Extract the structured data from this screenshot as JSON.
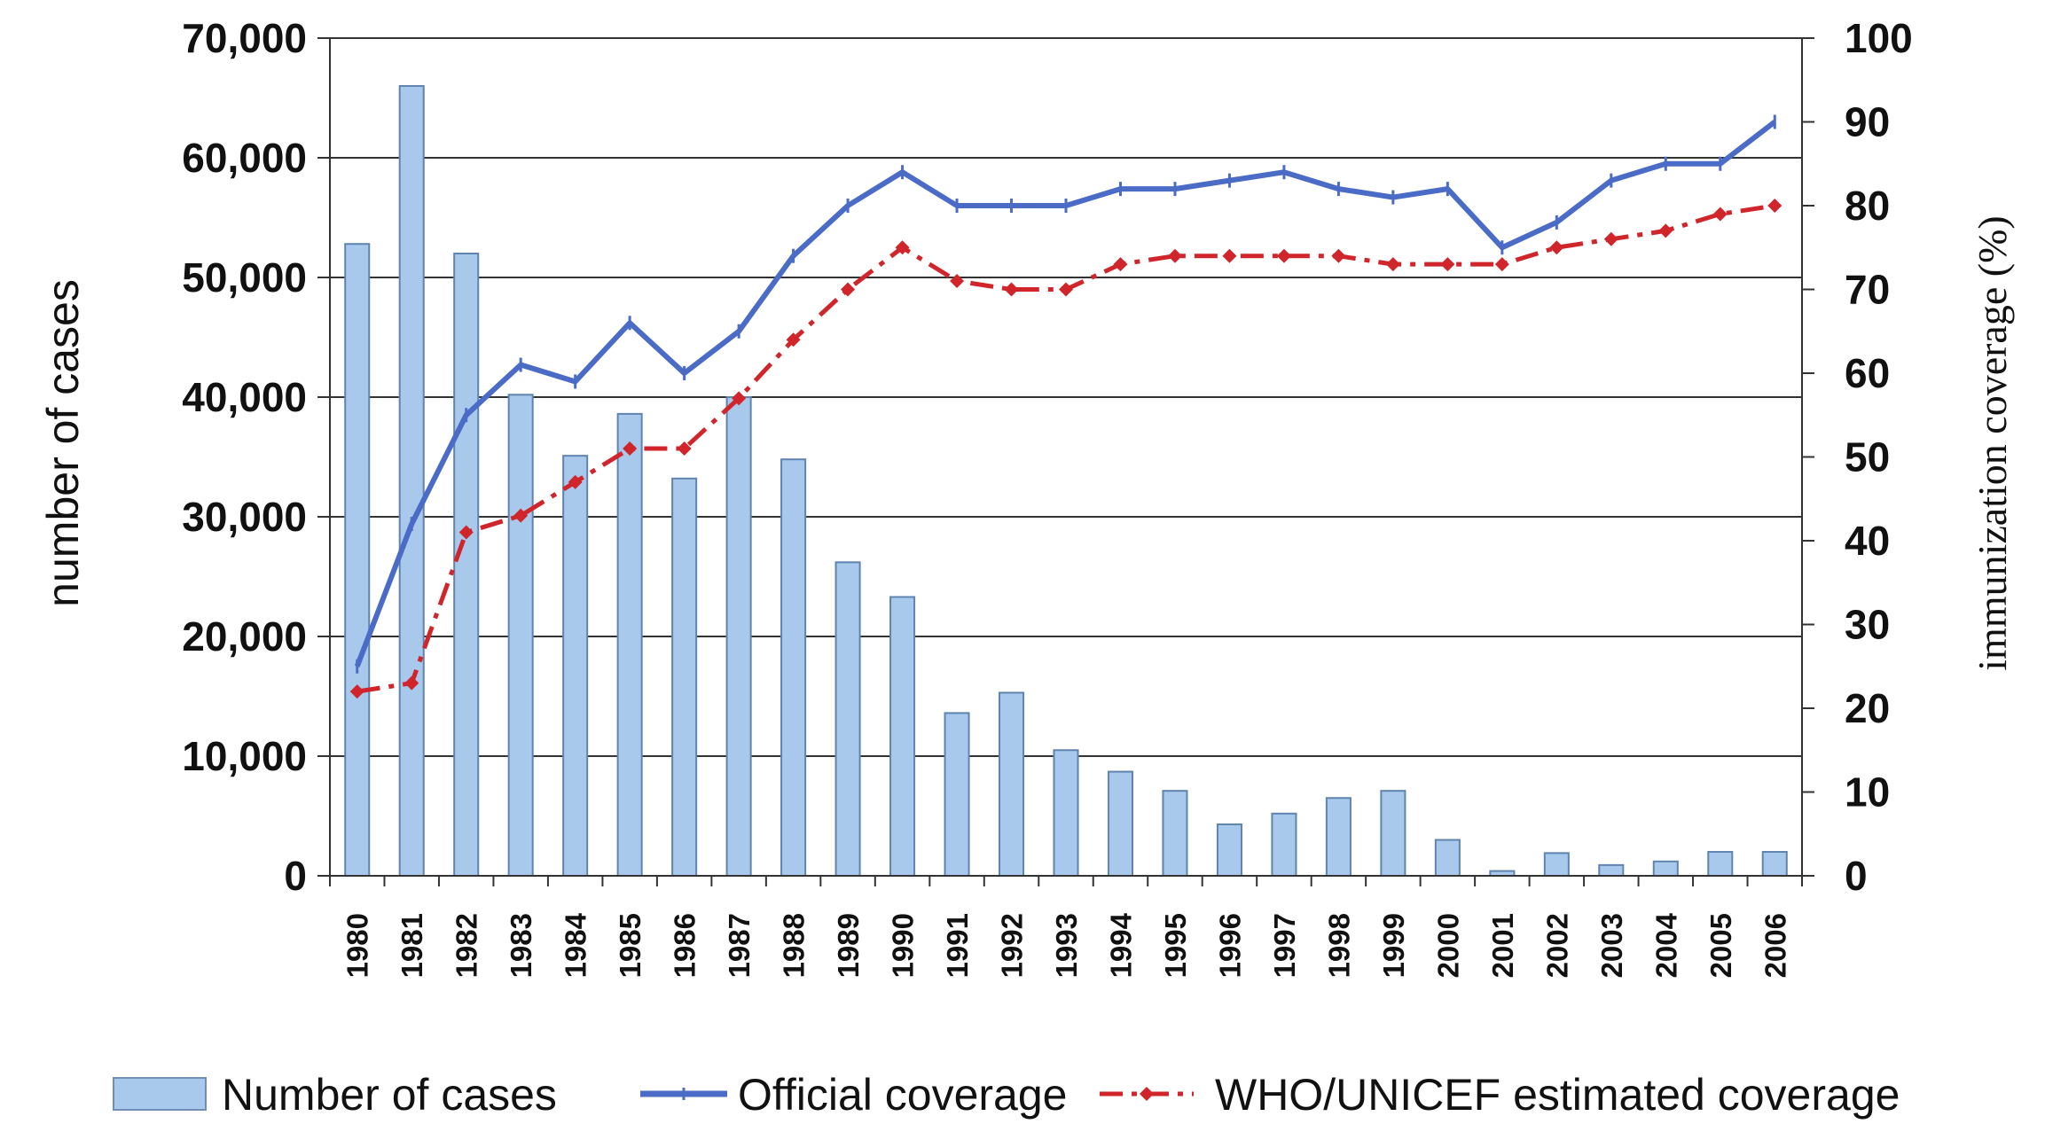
{
  "chart_data": {
    "type": "bar-line-combo",
    "years": [
      "1980",
      "1981",
      "1982",
      "1983",
      "1984",
      "1985",
      "1986",
      "1987",
      "1988",
      "1989",
      "1990",
      "1991",
      "1992",
      "1993",
      "1994",
      "1995",
      "1996",
      "1997",
      "1998",
      "1999",
      "2000",
      "2001",
      "2002",
      "2003",
      "2004",
      "2005",
      "2006"
    ],
    "y_left": {
      "label": "number of cases",
      "min": 0,
      "max": 70000,
      "step": 10000,
      "ticks": [
        "0",
        "10,000",
        "20,000",
        "30,000",
        "40,000",
        "50,000",
        "60,000",
        "70,000"
      ]
    },
    "y_right": {
      "label": "immunization coverage (%)",
      "min": 0,
      "max": 100,
      "step": 10,
      "ticks": [
        "0",
        "10",
        "20",
        "30",
        "40",
        "50",
        "60",
        "70",
        "80",
        "90",
        "100"
      ]
    },
    "grid": true,
    "legend_position": "bottom",
    "series": [
      {
        "name": "Number of cases",
        "kind": "bar",
        "axis": "left",
        "color": "#a8c8ec",
        "values": [
          52800,
          66000,
          52000,
          40200,
          35100,
          38600,
          33200,
          40000,
          34800,
          26200,
          23300,
          13600,
          15300,
          10500,
          8700,
          7100,
          4300,
          5200,
          6500,
          7100,
          3000,
          400,
          1900,
          900,
          1200,
          2000,
          2000
        ]
      },
      {
        "name": "Official coverage",
        "kind": "line",
        "axis": "right",
        "color": "#4a6bc6",
        "values": [
          25,
          42,
          55,
          61,
          59,
          66,
          60,
          65,
          74,
          80,
          84,
          80,
          80,
          80,
          82,
          82,
          83,
          84,
          82,
          81,
          82,
          75,
          78,
          83,
          85,
          85,
          90
        ]
      },
      {
        "name": "WHO/UNICEF estimated coverage",
        "kind": "line-dashdot",
        "axis": "right",
        "color": "#d0262b",
        "values": [
          22,
          23,
          41,
          43,
          47,
          51,
          51,
          57,
          64,
          70,
          75,
          71,
          70,
          70,
          73,
          74,
          74,
          74,
          74,
          73,
          73,
          73,
          75,
          76,
          77,
          79,
          80
        ]
      }
    ]
  }
}
